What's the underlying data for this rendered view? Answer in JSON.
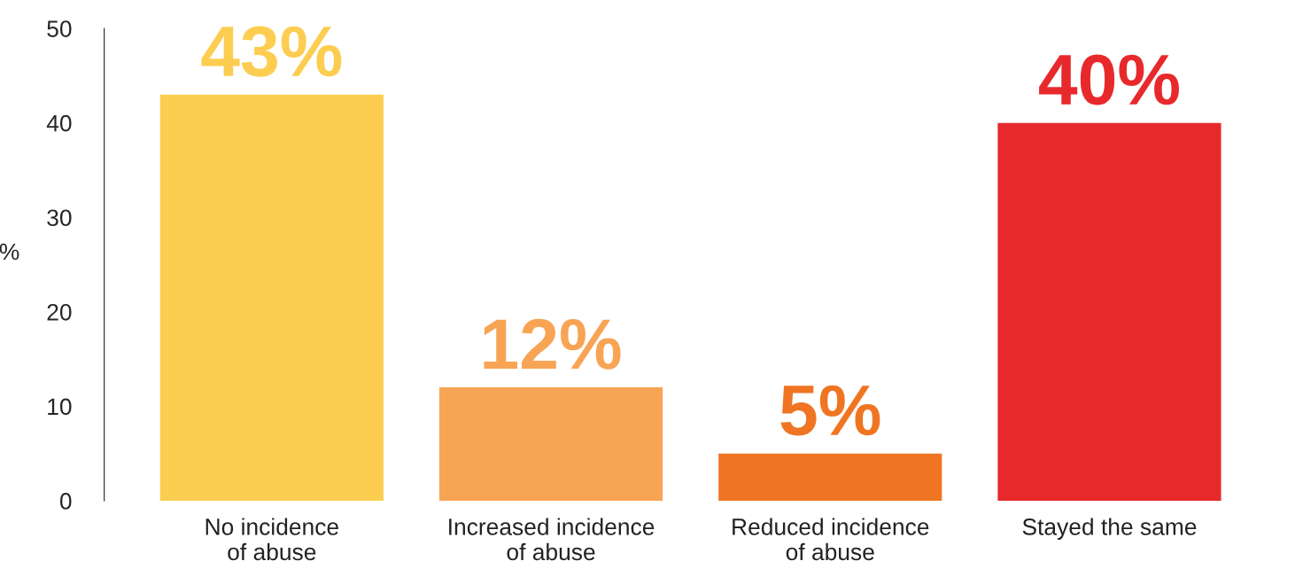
{
  "chart_data": {
    "type": "bar",
    "ylabel": "%",
    "categories": [
      "No incidence\nof abuse",
      "Increased incidence\nof abuse",
      "Reduced incidence\nof abuse",
      "Stayed the same"
    ],
    "values": [
      43,
      12,
      5,
      40
    ],
    "value_labels": [
      "43%",
      "12%",
      "5%",
      "40%"
    ],
    "colors": [
      "#fccd50",
      "#f8a455",
      "#f07522",
      "#e8292c"
    ],
    "ylim": [
      0,
      50
    ],
    "yticks": [
      0,
      10,
      20,
      30,
      40,
      50
    ],
    "grid": false,
    "legend": false
  }
}
